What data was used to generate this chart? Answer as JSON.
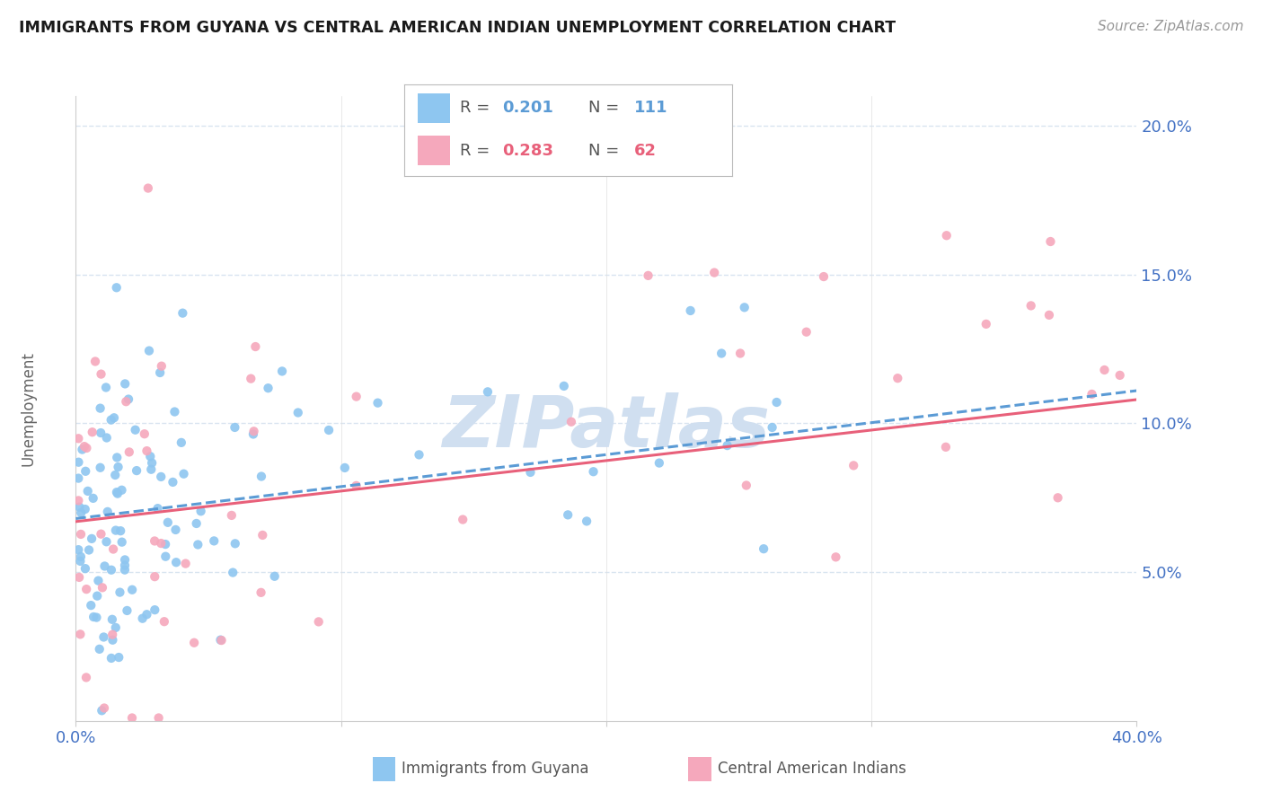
{
  "title": "IMMIGRANTS FROM GUYANA VS CENTRAL AMERICAN INDIAN UNEMPLOYMENT CORRELATION CHART",
  "source": "Source: ZipAtlas.com",
  "ylabel_label": "Unemployment",
  "xlim": [
    0.0,
    0.4
  ],
  "ylim": [
    0.0,
    0.21
  ],
  "series1_color": "#8EC6F0",
  "series2_color": "#F5A8BC",
  "trendline1_color": "#5B9BD5",
  "trendline2_color": "#E8607A",
  "watermark": "ZIPatlas",
  "watermark_color": "#D0DFF0",
  "axis_color": "#4472C4",
  "grid_color": "#D8E4F0",
  "background_color": "#FFFFFF",
  "R1": 0.201,
  "N1": 111,
  "R2": 0.283,
  "N2": 62,
  "trendline1_y0": 0.068,
  "trendline1_y1": 0.111,
  "trendline2_y0": 0.067,
  "trendline2_y1": 0.108
}
